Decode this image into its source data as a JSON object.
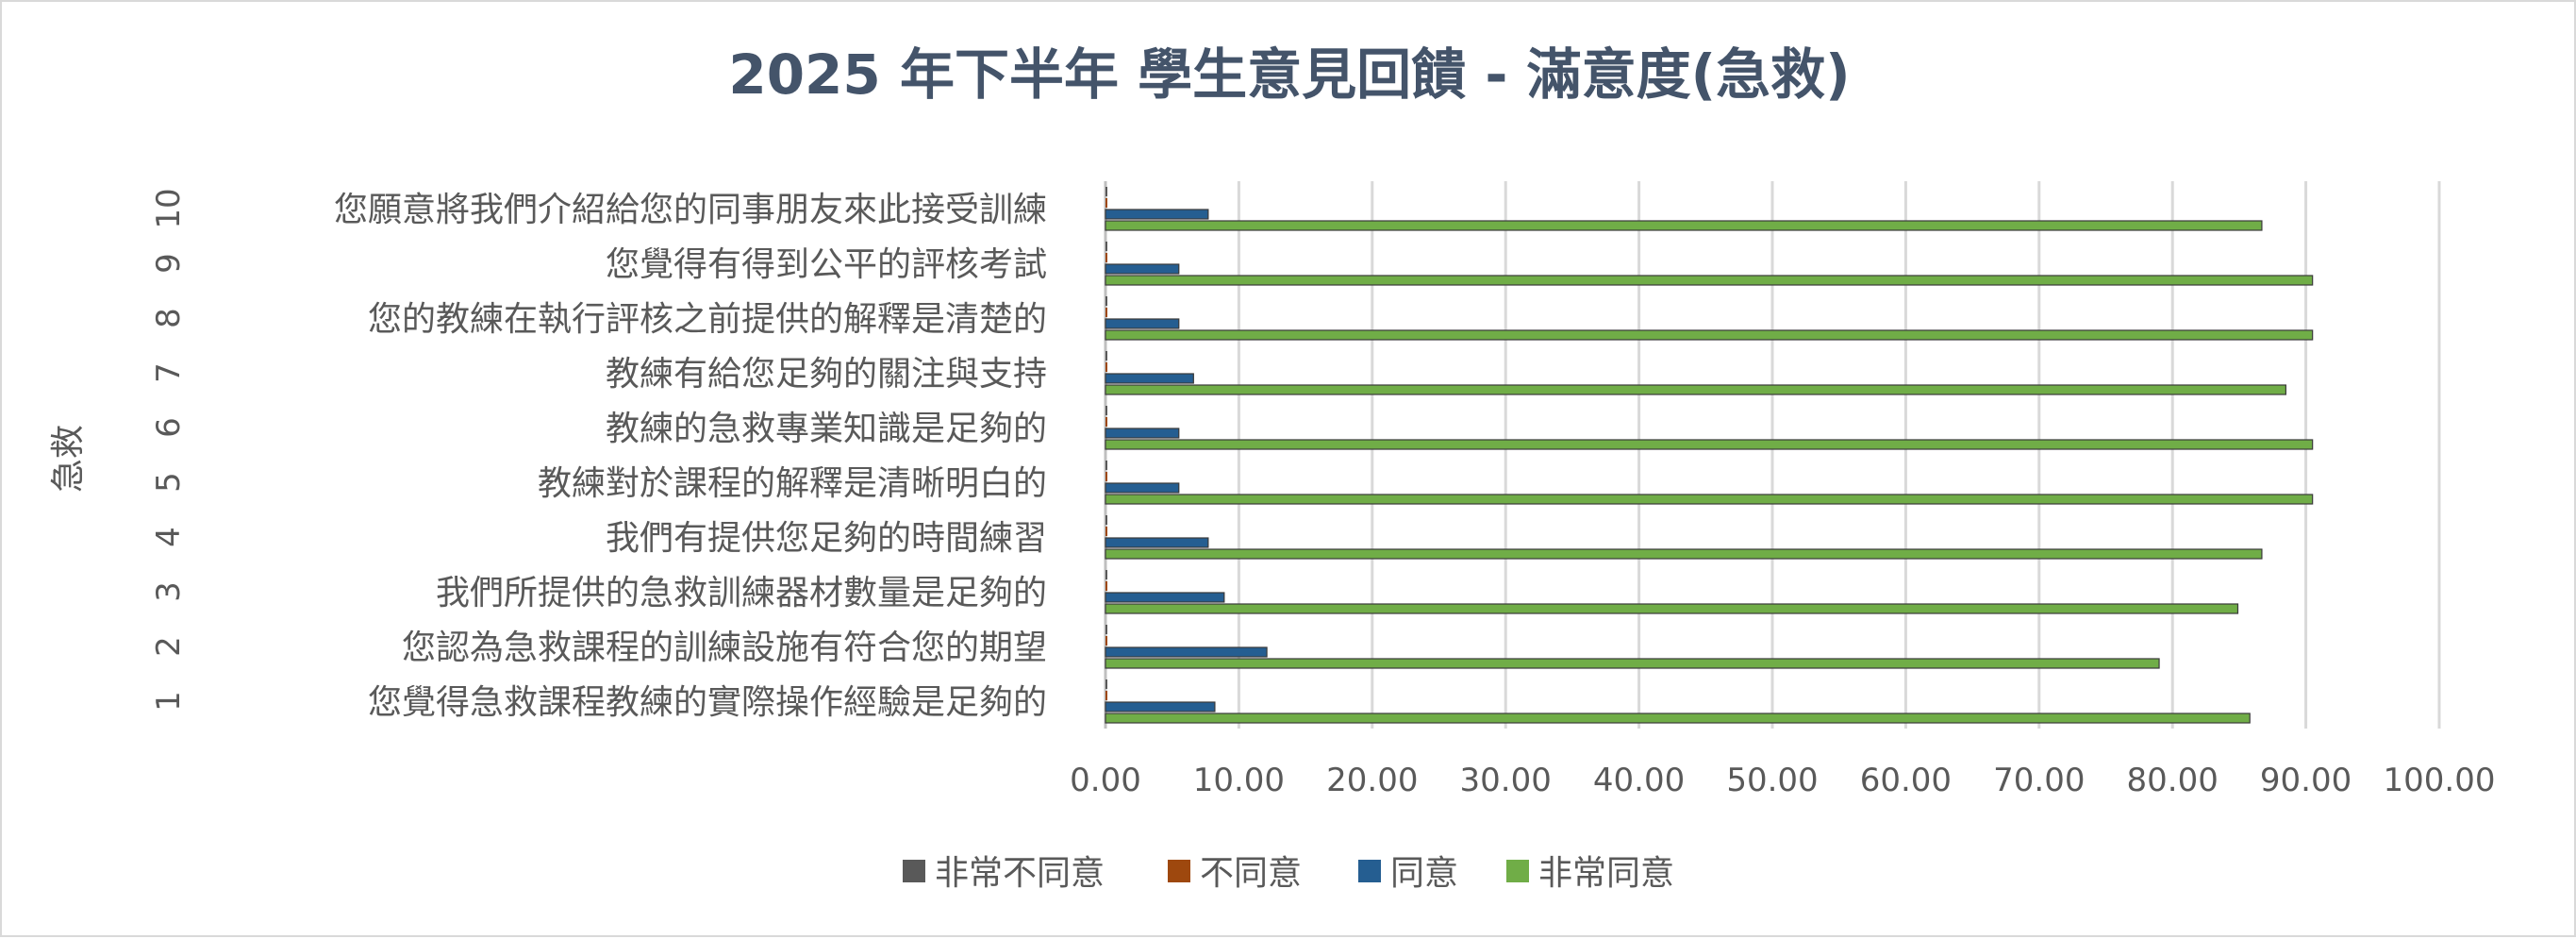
{
  "chart_data": {
    "type": "bar",
    "orientation": "horizontal",
    "title": "2025 年下半年 學生意見回饋 - 滿意度(急救)",
    "ylabel": "急救",
    "xlim": [
      0,
      100
    ],
    "x_ticks": [
      "0.00",
      "10.00",
      "20.00",
      "30.00",
      "40.00",
      "50.00",
      "60.00",
      "70.00",
      "80.00",
      "90.00",
      "100.00"
    ],
    "grid": true,
    "legend_position": "bottom",
    "categories": [
      {
        "num": "1",
        "label": "您覺得急救課程教練的實際操作經驗是足夠的"
      },
      {
        "num": "2",
        "label": "您認為急救課程的訓練設施有符合您的期望"
      },
      {
        "num": "3",
        "label": "我們所提供的急救訓練器材數量是足夠的"
      },
      {
        "num": "4",
        "label": "我們有提供您足夠的時間練習"
      },
      {
        "num": "5",
        "label": "教練對於課程的解釋是清晰明白的"
      },
      {
        "num": "6",
        "label": "教練的急救專業知識是足夠的"
      },
      {
        "num": "7",
        "label": "教練有給您足夠的關注與支持"
      },
      {
        "num": "8",
        "label": "您的教練在執行評核之前提供的解釋是清楚的"
      },
      {
        "num": "9",
        "label": "您覺得有得到公平的評核考試"
      },
      {
        "num": "10",
        "label": "您願意將我們介紹給您的同事朋友來此接受訓練"
      }
    ],
    "series": [
      {
        "name": "非常不同意",
        "color": "#595959",
        "values": [
          0,
          0,
          0,
          0,
          0,
          0,
          0,
          0,
          0,
          0
        ]
      },
      {
        "name": "不同意",
        "color": "#9e480e",
        "values": [
          0,
          0,
          0,
          0,
          0,
          0,
          0,
          0,
          0,
          0
        ]
      },
      {
        "name": "同意",
        "color": "#255e91",
        "values": [
          8.2,
          12.1,
          8.9,
          7.7,
          5.5,
          5.5,
          6.6,
          5.5,
          5.5,
          7.7
        ]
      },
      {
        "name": "非常同意",
        "color": "#70ad47",
        "values": [
          85.8,
          79.0,
          84.9,
          86.7,
          90.5,
          90.5,
          88.5,
          90.5,
          90.5,
          86.7
        ]
      }
    ]
  }
}
